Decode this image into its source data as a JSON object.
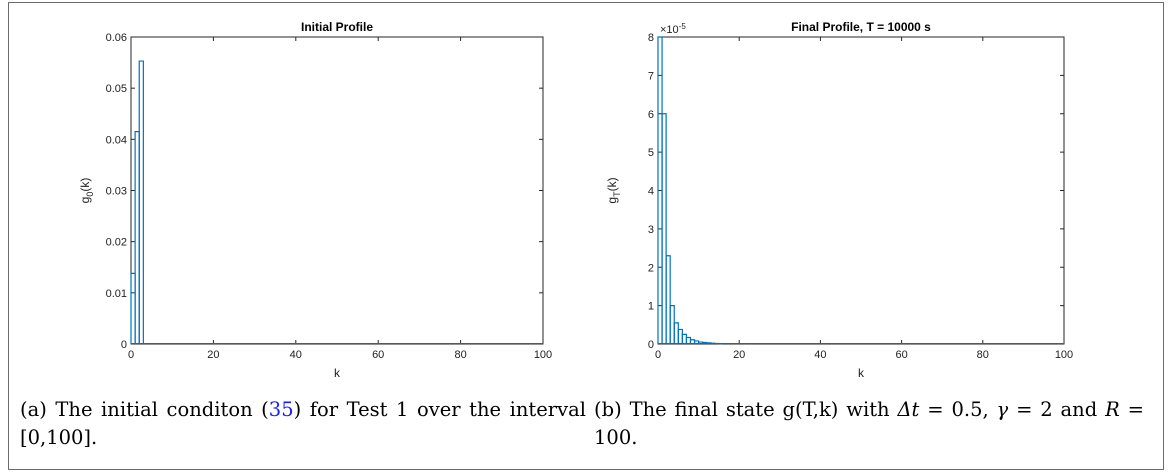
{
  "chart_data": [
    {
      "type": "bar",
      "title": "Initial Profile",
      "xlabel": "k",
      "ylabel_base": "g",
      "ylabel_sub": "0",
      "ylabel_rest": "(k)",
      "xlim": [
        0,
        100
      ],
      "ylim": [
        0,
        0.06
      ],
      "xticks": [
        "0",
        "20",
        "40",
        "60",
        "80",
        "100"
      ],
      "yticks": [
        "0",
        "0.01",
        "0.02",
        "0.03",
        "0.04",
        "0.05",
        "0.06"
      ],
      "exponent_label": "",
      "series": [
        {
          "x": [
            0,
            1,
            2
          ],
          "values": [
            0.0138,
            0.0415,
            0.0553
          ]
        }
      ],
      "grid": false,
      "color": "#0072bd"
    },
    {
      "type": "bar",
      "title": "Final Profile, T = 10000 s",
      "xlabel": "k",
      "ylabel_base": "g",
      "ylabel_sub": "T",
      "ylabel_rest": "(k)",
      "xlim": [
        0,
        100
      ],
      "ylim": [
        0,
        8
      ],
      "xticks": [
        "0",
        "20",
        "40",
        "60",
        "80",
        "100"
      ],
      "yticks": [
        "0",
        "1",
        "2",
        "3",
        "4",
        "5",
        "6",
        "7",
        "8"
      ],
      "exponent_label": "×10",
      "exponent_power": "-5",
      "series": [
        {
          "x": [
            0,
            1,
            2,
            3,
            4,
            5,
            6,
            7,
            8,
            9,
            10,
            11,
            12,
            13,
            14,
            15
          ],
          "values": [
            8.0,
            6.0,
            2.3,
            1.0,
            0.55,
            0.38,
            0.25,
            0.17,
            0.11,
            0.08,
            0.05,
            0.04,
            0.03,
            0.02,
            0.015,
            0.01
          ]
        }
      ],
      "grid": false,
      "color": "#0072bd"
    }
  ],
  "captions": {
    "a_prefix": "(a) The initial conditon (",
    "a_ref": "35",
    "a_suffix": ") for Test 1 over the interval [0,100].",
    "b_prefix": "(b) The final state g(T,k) with ",
    "b_dt": "Δt",
    "b_mid1": " = 0.5, ",
    "b_gamma": "γ",
    "b_mid2": " = 2 and ",
    "b_R": "R",
    "b_end": " = 100."
  }
}
